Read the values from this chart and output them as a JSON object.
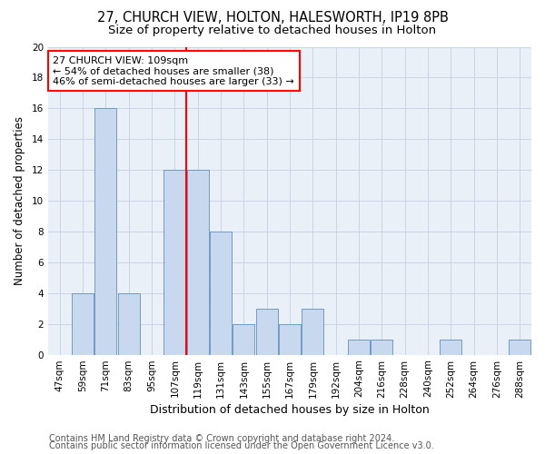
{
  "title1": "27, CHURCH VIEW, HOLTON, HALESWORTH, IP19 8PB",
  "title2": "Size of property relative to detached houses in Holton",
  "xlabel": "Distribution of detached houses by size in Holton",
  "ylabel": "Number of detached properties",
  "categories": [
    "47sqm",
    "59sqm",
    "71sqm",
    "83sqm",
    "95sqm",
    "107sqm",
    "119sqm",
    "131sqm",
    "143sqm",
    "155sqm",
    "167sqm",
    "179sqm",
    "192sqm",
    "204sqm",
    "216sqm",
    "228sqm",
    "240sqm",
    "252sqm",
    "264sqm",
    "276sqm",
    "288sqm"
  ],
  "values": [
    0,
    4,
    16,
    4,
    0,
    12,
    12,
    8,
    2,
    3,
    2,
    3,
    0,
    1,
    1,
    0,
    0,
    1,
    0,
    0,
    1
  ],
  "bar_color": "#c8d8ee",
  "bar_edge_color": "#6090b8",
  "vline_x_index": 5,
  "vline_color": "red",
  "annotation_line1": "27 CHURCH VIEW: 109sqm",
  "annotation_line2": "← 54% of detached houses are smaller (38)",
  "annotation_line3": "46% of semi-detached houses are larger (33) →",
  "annotation_box_color": "red",
  "footer1": "Contains HM Land Registry data © Crown copyright and database right 2024.",
  "footer2": "Contains public sector information licensed under the Open Government Licence v3.0.",
  "ylim": [
    0,
    20
  ],
  "yticks": [
    0,
    2,
    4,
    6,
    8,
    10,
    12,
    14,
    16,
    18,
    20
  ],
  "grid_color": "#c8d4e4",
  "bg_color": "#eaf0f8",
  "title1_fontsize": 10.5,
  "title2_fontsize": 9.5,
  "xlabel_fontsize": 9,
  "ylabel_fontsize": 8.5,
  "tick_fontsize": 7.5,
  "annot_fontsize": 8,
  "footer_fontsize": 7
}
